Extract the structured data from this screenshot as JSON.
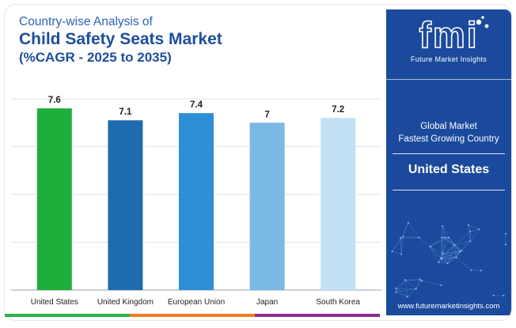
{
  "title": {
    "line1": "Country-wise Analysis of",
    "line2": "Child Safety Seats Market",
    "line3": "(%CAGR - 2025 to 2035)"
  },
  "chart_data": {
    "type": "bar",
    "categories": [
      "United States",
      "United Kingdom",
      "European Union",
      "Japan",
      "South Korea"
    ],
    "values": [
      7.6,
      7.1,
      7.4,
      7,
      7.2
    ],
    "value_labels": [
      "7.6",
      "7.1",
      "7.4",
      "7",
      "7.2"
    ],
    "bar_colors": [
      "#1fae3a",
      "#1e6bb0",
      "#2f8fd6",
      "#7ab9e4",
      "#c3e1f4"
    ],
    "ylim": [
      0,
      8
    ],
    "grid": true,
    "xlabel": "",
    "ylabel": ""
  },
  "side_panel": {
    "logo_text": "fmi",
    "logo_sub": "Future Market Insights",
    "label1": "Global Market",
    "label2": "Fastest Growing Country",
    "country": "United States",
    "url": "www.futuremarketinsights.com",
    "bg_color": "#1b4a9c"
  },
  "bottom_bar_colors": [
    "#2bb34a",
    "#f07b21",
    "#8a2d8e"
  ]
}
